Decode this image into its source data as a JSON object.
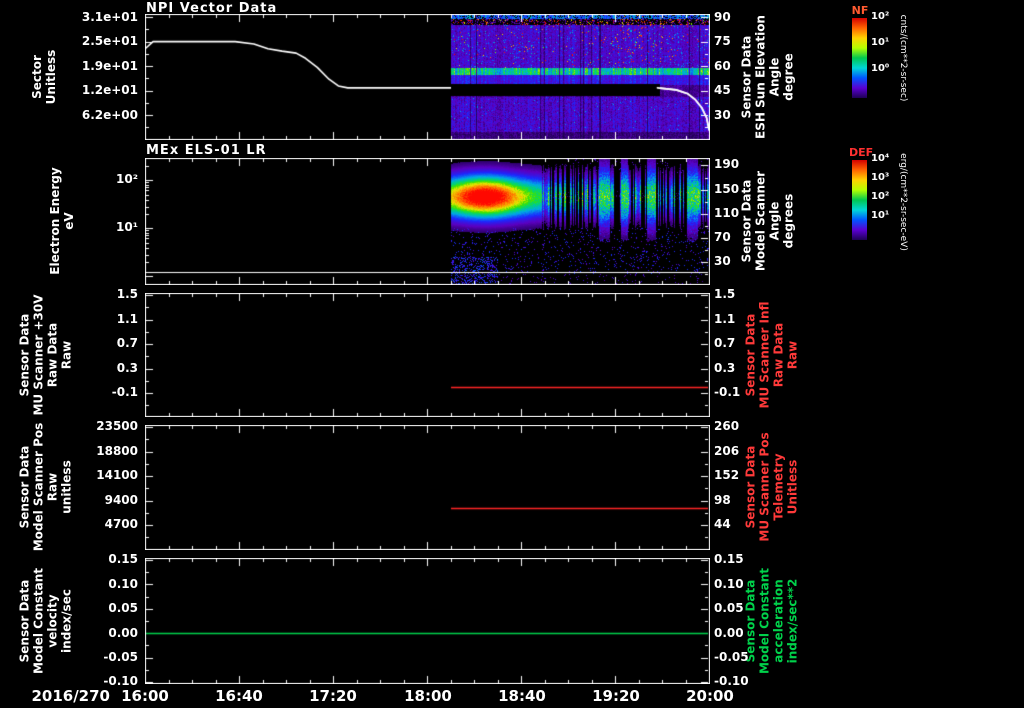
{
  "titles": {
    "panel1": "NPI Vector Data",
    "panel2": "MEx ELS-01 LR"
  },
  "x_axis": {
    "date": "2016/270",
    "ticks": [
      "16:00",
      "16:40",
      "17:20",
      "18:00",
      "18:40",
      "19:20",
      "20:00"
    ]
  },
  "panels": [
    {
      "left_label": "Sector\nUnitless",
      "left_ticks": [
        "3.1e+01",
        "2.5e+01",
        "1.9e+01",
        "1.2e+01",
        "6.2e+00"
      ],
      "right_label": "Sensor Data\nESH Sun Elevation\nAngle\ndegree",
      "right_ticks": [
        "90",
        "75",
        "60",
        "45",
        "30"
      ]
    },
    {
      "left_label": "Electron Energy\neV",
      "left_ticks": [
        "10²",
        "10¹"
      ],
      "right_label": "Sensor Data\nModel Scanner\nAngle\ndegrees",
      "right_ticks": [
        "190",
        "150",
        "110",
        "70",
        "30"
      ]
    },
    {
      "left_label": "Sensor Data\nMU Scanner +30V\nRaw Data\nRaw",
      "left_ticks": [
        "1.5",
        "1.1",
        "0.7",
        "0.3",
        "-0.1"
      ],
      "right_label": "Sensor Data\nMU Scanner Infl\nRaw Data\nRaw",
      "right_ticks": [
        "1.5",
        "1.1",
        "0.7",
        "0.3",
        "-0.1"
      ]
    },
    {
      "left_label": "Sensor Data\nModel Scanner Pos\nRaw\nunitless",
      "left_ticks": [
        "23500",
        "18800",
        "14100",
        "9400",
        "4700"
      ],
      "right_label": "Sensor Data\nMU Scanner Pos\nTelemetry\nUnitless",
      "right_ticks": [
        "260",
        "206",
        "152",
        "98",
        "44"
      ]
    },
    {
      "left_label": "Sensor Data\nModel Constant\nvelocity\nindex/sec",
      "left_ticks": [
        "0.15",
        "0.10",
        "0.05",
        "0.00",
        "-0.05",
        "-0.10"
      ],
      "right_label": "Sensor Data\nModel Constant\nacceleration\nindex/sec**2",
      "right_ticks": [
        "0.15",
        "0.10",
        "0.05",
        "0.00",
        "-0.05",
        "-0.10"
      ]
    }
  ],
  "colorbars": [
    {
      "title": "NF",
      "ticks": [
        "10²",
        "10¹",
        "10⁰"
      ],
      "unit": "cnts/(cm**2-sr-sec)"
    },
    {
      "title": "DEF",
      "ticks": [
        "10⁴",
        "10³",
        "10²",
        "10¹"
      ],
      "unit": "erg/(cm**2-sr-sec-eV)"
    }
  ],
  "colors": {
    "foreground": "#ffffff",
    "background": "#000000",
    "line_red": "#ff2626",
    "line_green": "#00d24b",
    "label_red": "#ff3a3a",
    "label_green": "#00d24b",
    "nf_title": "#ff5a30",
    "def_title": "#ff3030"
  },
  "colorbar_gradient": [
    "#d40000",
    "#ff6400",
    "#ffd200",
    "#b4ff00",
    "#00c850",
    "#00d7d7",
    "#0055ff",
    "#5a00d2",
    "#1e0055"
  ],
  "chart_data": [
    {
      "type": "heatmap+line",
      "panel": "NPI Vector Data",
      "x_range": [
        "16:00",
        "20:00"
      ],
      "x_tick_interval_min": 40,
      "y_left": {
        "label": "Sector (Unitless)",
        "ticks": [
          31,
          24.8,
          18.6,
          12.4,
          6.2
        ],
        "range": [
          0,
          31.8
        ]
      },
      "y_right": {
        "label": "ESH Sun Elevation Angle (degree)",
        "ticks": [
          90,
          75,
          60,
          45,
          30
        ]
      },
      "line": {
        "name": "Sector",
        "color": "#ffffff",
        "points_format": "[minutes after 16:00, sector value]",
        "points": [
          [
            0,
            23.2
          ],
          [
            3,
            24.8
          ],
          [
            38,
            24.8
          ],
          [
            46,
            24.2
          ],
          [
            52,
            23.0
          ],
          [
            58,
            22.4
          ],
          [
            64,
            21.9
          ],
          [
            68,
            20.6
          ],
          [
            73,
            18.3
          ],
          [
            78,
            15.3
          ],
          [
            82,
            13.6
          ],
          [
            86,
            13.1
          ],
          [
            218,
            13.1
          ],
          [
            226,
            12.6
          ],
          [
            231,
            11.6
          ],
          [
            234,
            10.2
          ],
          [
            237,
            8.0
          ],
          [
            239,
            5.5
          ],
          [
            240,
            2.5
          ]
        ]
      },
      "spectrogram": {
        "time_range": [
          "18:10",
          "20:00"
        ],
        "colorbar": "NF",
        "units": "cnts/(cm**2-sr-sec)",
        "value_decades": [
          "10^2",
          "10^1",
          "10^0"
        ],
        "features": [
          "violet-blue background counts",
          "bright cyan band near 60 degrees elevation",
          "black data-gap band near 45 degrees",
          "sparse red speckles near 85-90 degrees"
        ]
      }
    },
    {
      "type": "heatmap",
      "panel": "MEx ELS-01 LR",
      "y_left": {
        "label": "Electron Energy (eV)",
        "scale": "log",
        "ticks": [
          100,
          10
        ]
      },
      "y_right": {
        "label": "Model Scanner Angle (degrees)",
        "ticks": [
          190,
          150,
          110,
          70,
          30
        ]
      },
      "spectrogram": {
        "time_range": [
          "18:10",
          "20:00"
        ],
        "colorbar": "DEF",
        "units": "erg/(cm**2-sr-sec-eV)",
        "features": [
          "intense red-yellow electron flux 20-100 eV from 18:10 to about 18:50",
          "intermittent cyan-blue vertical striping 18:50-20:00",
          "scattered low-energy blue speckles below 10 eV"
        ]
      },
      "overlay_line": {
        "color": "#ffffff",
        "value_ev": 3,
        "time_range": [
          "16:00",
          "20:00"
        ]
      }
    },
    {
      "type": "line",
      "panel": "MU Scanner +30V Raw Data",
      "y_range": [
        -0.5,
        1.5
      ],
      "series": [
        {
          "name": "MU Scanner Infl Raw Data",
          "color": "#ff2626",
          "value": 0.0,
          "time_range": [
            "18:10",
            "20:00"
          ]
        }
      ]
    },
    {
      "type": "line",
      "panel": "Model Scanner Pos Raw",
      "y_left_range": [
        0,
        24000
      ],
      "y_right_range": [
        0,
        270
      ],
      "series": [
        {
          "name": "MU Scanner Pos Telemetry",
          "color": "#ff2626",
          "value_right": 82,
          "value_left": 7900,
          "time_range": [
            "18:10",
            "20:00"
          ]
        }
      ]
    },
    {
      "type": "line",
      "panel": "Model Constant velocity",
      "y_range": [
        -0.1,
        0.15
      ],
      "series": [
        {
          "name": "Model Constant acceleration",
          "color": "#00d24b",
          "value": 0.0,
          "time_range": [
            "16:00",
            "20:00"
          ]
        }
      ]
    }
  ]
}
